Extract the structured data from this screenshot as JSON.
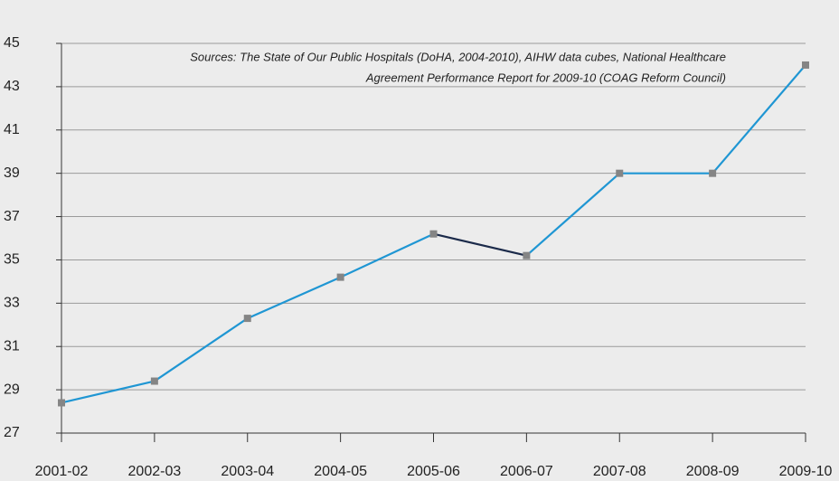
{
  "chart_data": {
    "type": "line",
    "annotation": [
      "Sources: The State of Our Public Hospitals (DoHA, 2004-2010), AIHW data cubes, National Healthcare",
      "Agreement Performance Report for 2009-10 (COAG Reform Council)"
    ],
    "categories": [
      "2001-02",
      "2002-03",
      "2003-04",
      "2004-05",
      "2005-06",
      "2006-07",
      "2007-08",
      "2008-09",
      "2009-10"
    ],
    "series": [
      {
        "color": "#1f96d3",
        "marker_color": "#858585",
        "values": [
          28.4,
          29.4,
          32.3,
          34.2,
          36.2,
          35.2,
          39.0,
          39.0,
          44.0
        ]
      }
    ],
    "segment_colors": [
      "#1f96d3",
      "#1f96d3",
      "#1f96d3",
      "#1f96d3",
      "#1b2a4a",
      "#1f96d3",
      "#1f96d3",
      "#1f96d3"
    ],
    "ylim": [
      27,
      45
    ],
    "yticks": [
      27,
      29,
      31,
      33,
      35,
      37,
      39,
      41,
      43,
      45
    ],
    "grid": true
  }
}
